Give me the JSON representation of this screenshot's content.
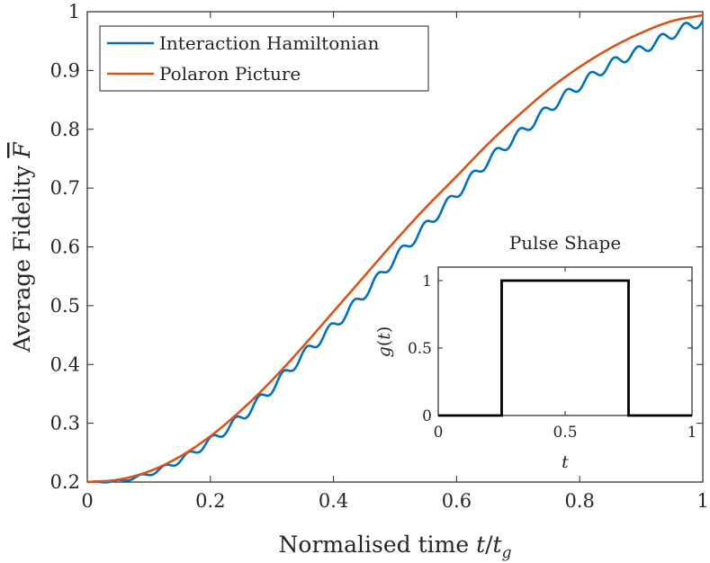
{
  "chart_data": [
    {
      "type": "line",
      "title": "",
      "xlabel": "Normalised time t/t_g",
      "ylabel": "Average Fidelity F̄",
      "xlim": [
        0,
        1
      ],
      "ylim": [
        0.2,
        1
      ],
      "xticks": [
        "0",
        "0.2",
        "0.4",
        "0.6",
        "0.8",
        "1"
      ],
      "yticks": [
        "0.2",
        "0.3",
        "0.4",
        "0.5",
        "0.6",
        "0.7",
        "0.8",
        "0.9",
        "1"
      ],
      "grid": false,
      "legend_position": "top-left",
      "series": [
        {
          "name": "Interaction Hamiltonian",
          "color": "#0072bd",
          "x": [
            0,
            0.05,
            0.1,
            0.15,
            0.2,
            0.25,
            0.3,
            0.35,
            0.4,
            0.45,
            0.5,
            0.55,
            0.6,
            0.65,
            0.7,
            0.75,
            0.8,
            0.85,
            0.9,
            0.95,
            1.0
          ],
          "y": [
            0.2,
            0.202,
            0.214,
            0.237,
            0.27,
            0.31,
            0.36,
            0.415,
            0.465,
            0.52,
            0.58,
            0.635,
            0.69,
            0.745,
            0.79,
            0.835,
            0.875,
            0.91,
            0.935,
            0.962,
            0.985
          ]
        },
        {
          "name": "Polaron Picture",
          "color": "#d95319",
          "x": [
            0,
            0.05,
            0.1,
            0.15,
            0.2,
            0.25,
            0.3,
            0.35,
            0.4,
            0.45,
            0.5,
            0.55,
            0.6,
            0.65,
            0.7,
            0.75,
            0.8,
            0.85,
            0.9,
            0.95,
            1.0
          ],
          "y": [
            0.2,
            0.204,
            0.218,
            0.243,
            0.278,
            0.322,
            0.373,
            0.43,
            0.49,
            0.55,
            0.61,
            0.667,
            0.72,
            0.774,
            0.823,
            0.868,
            0.906,
            0.938,
            0.964,
            0.984,
            0.994
          ]
        }
      ]
    },
    {
      "type": "line",
      "title": "Pulse Shape",
      "xlabel": "t",
      "ylabel": "g(t)",
      "xlim": [
        0,
        1
      ],
      "ylim": [
        0,
        1.1
      ],
      "xticks": [
        "0",
        "0.5",
        "1"
      ],
      "yticks": [
        "0",
        "0.5",
        "1"
      ],
      "grid": false,
      "series": [
        {
          "name": "g(t)",
          "color": "#000000",
          "x": [
            0,
            0.25,
            0.25,
            0.75,
            0.75,
            1.0
          ],
          "y": [
            0,
            0,
            1,
            1,
            0,
            0
          ]
        }
      ]
    }
  ]
}
